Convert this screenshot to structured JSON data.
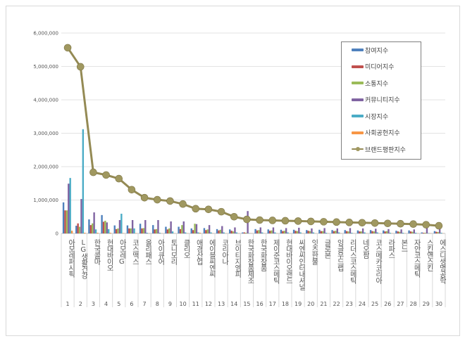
{
  "chart_data": {
    "type": "bar",
    "title": "",
    "xlabel": "",
    "ylabel": "",
    "ylim": [
      0,
      6000000
    ],
    "yticks": [
      "0",
      "1,000,000",
      "2,000,000",
      "3,000,000",
      "4,000,000",
      "5,000,000",
      "6,000,000"
    ],
    "grid": true,
    "legend_position": "top-right",
    "categories": [
      "아모레퍼시픽",
      "LG생활건강",
      "한국콜마",
      "현대바이오",
      "아모레G",
      "코스맥스",
      "올리패스",
      "아이큐어",
      "토니모리",
      "클리오",
      "애경산업",
      "에이블씨엔씨",
      "코리아나",
      "브이티지엠피",
      "한국화장품제조",
      "한국화장품",
      "제이준코스메틱",
      "현대바이오랜드",
      "씨엔씨인터내셔널",
      "잇츠한불",
      "글로본",
      "잉글우드랩",
      "리더스코스메틱",
      "네오팜",
      "코스메카코리아",
      "라파스",
      "본느",
      "자안코스메틱",
      "스킨앤스킨",
      "에스디생명공학"
    ],
    "ranks": [
      "1",
      "2",
      "3",
      "4",
      "5",
      "6",
      "7",
      "8",
      "9",
      "10",
      "11",
      "12",
      "13",
      "14",
      "15",
      "16",
      "17",
      "18",
      "19",
      "20",
      "21",
      "22",
      "23",
      "24",
      "25",
      "26",
      "27",
      "28",
      "29",
      "30"
    ],
    "series": [
      {
        "name": "참여지수",
        "color": "#4f81bd",
        "values": [
          930000,
          230000,
          420000,
          550000,
          240000,
          240000,
          290000,
          250000,
          200000,
          200000,
          150000,
          160000,
          130000,
          120000,
          30000,
          130000,
          120000,
          110000,
          110000,
          100000,
          110000,
          100000,
          100000,
          90000,
          100000,
          90000,
          80000,
          90000,
          30000,
          70000
        ]
      },
      {
        "name": "미디어지수",
        "color": "#c0504d",
        "values": [
          690000,
          300000,
          250000,
          350000,
          130000,
          150000,
          150000,
          120000,
          120000,
          130000,
          100000,
          100000,
          90000,
          80000,
          30000,
          90000,
          80000,
          70000,
          80000,
          80000,
          70000,
          70000,
          70000,
          60000,
          70000,
          60000,
          60000,
          60000,
          20000,
          50000
        ]
      },
      {
        "name": "소통지수",
        "color": "#9bbb59",
        "values": [
          690000,
          200000,
          300000,
          380000,
          150000,
          150000,
          160000,
          130000,
          150000,
          250000,
          290000,
          120000,
          110000,
          60000,
          20000,
          100000,
          90000,
          80000,
          70000,
          70000,
          70000,
          80000,
          60000,
          60000,
          60000,
          70000,
          50000,
          50000,
          20000,
          40000
        ]
      },
      {
        "name": "커뮤니티지수",
        "color": "#8064a2",
        "values": [
          1490000,
          1030000,
          630000,
          330000,
          400000,
          400000,
          400000,
          400000,
          360000,
          360000,
          280000,
          250000,
          220000,
          180000,
          670000,
          180000,
          180000,
          160000,
          170000,
          150000,
          160000,
          150000,
          160000,
          150000,
          140000,
          130000,
          120000,
          120000,
          210000,
          130000
        ]
      },
      {
        "name": "시장지수",
        "color": "#4bacc6",
        "values": [
          1660000,
          3120000,
          120000,
          130000,
          590000,
          150000,
          20000,
          20000,
          60000,
          30000,
          30000,
          30000,
          30000,
          30000,
          10000,
          30000,
          30000,
          30000,
          30000,
          30000,
          20000,
          30000,
          20000,
          30000,
          30000,
          20000,
          20000,
          20000,
          10000,
          20000
        ]
      },
      {
        "name": "사회공헌지수",
        "color": "#f79646",
        "values": [
          80000,
          20000,
          20000,
          20000,
          10000,
          10000,
          5000,
          5000,
          5000,
          5000,
          20000,
          5000,
          5000,
          5000,
          5000,
          5000,
          5000,
          5000,
          5000,
          5000,
          5000,
          5000,
          5000,
          5000,
          5000,
          5000,
          5000,
          5000,
          5000,
          5000
        ]
      },
      {
        "name": "브랜드평판지수",
        "color": "#948a54",
        "type": "line",
        "values": [
          5560000,
          4990000,
          1830000,
          1750000,
          1640000,
          1310000,
          1070000,
          1010000,
          970000,
          880000,
          740000,
          720000,
          650000,
          500000,
          420000,
          400000,
          390000,
          380000,
          370000,
          360000,
          350000,
          340000,
          330000,
          320000,
          310000,
          300000,
          290000,
          280000,
          260000,
          230000
        ]
      }
    ]
  }
}
